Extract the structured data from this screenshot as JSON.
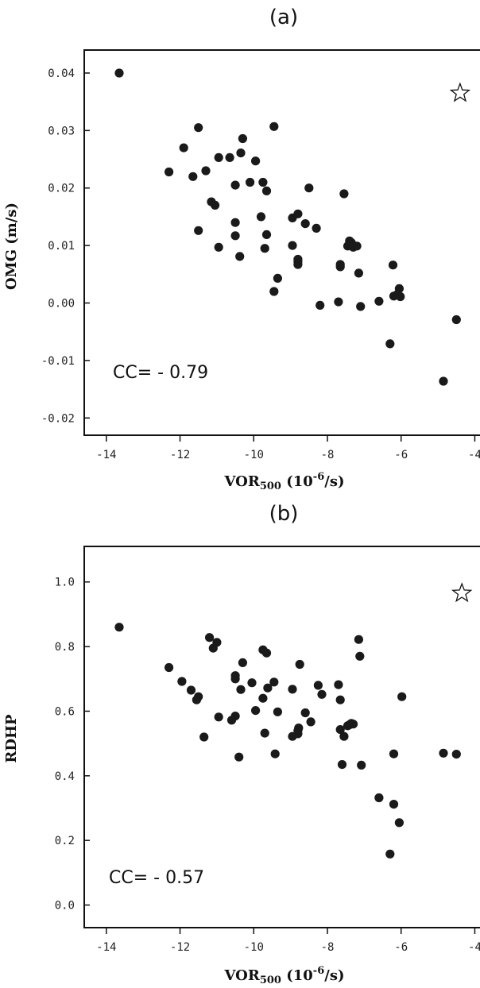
{
  "chart_data": [
    {
      "type": "scatter",
      "panel_label": "(a)",
      "xlabel_main": "VOR",
      "xlabel_sub": "500",
      "xlabel_unit_pre": " (10",
      "xlabel_unit_exp": "-6",
      "xlabel_unit_post": "/s)",
      "ylabel": "OMG (m/s)",
      "annotation": "CC= - 0.79",
      "xlim": [
        -14.6,
        -3.6
      ],
      "ylim": [
        -0.023,
        0.044
      ],
      "x_ticks": [
        -14,
        -12,
        -10,
        -8,
        -6,
        -4
      ],
      "x_tick_labels": [
        "-14",
        "-12",
        "-10",
        "-8",
        "-6",
        "-4"
      ],
      "y_ticks": [
        0.04,
        0.03,
        0.02,
        0.01,
        0.0,
        -0.01,
        -0.02
      ],
      "y_tick_labels": [
        "0.04",
        "0.03",
        "0.02",
        "0.01",
        "0.00",
        "-0.01",
        "-0.02"
      ],
      "star_marker": {
        "x": -4.4,
        "y": 0.0365
      },
      "points": [
        [
          -13.65,
          0.04
        ],
        [
          -12.3,
          0.0228
        ],
        [
          -11.9,
          0.027
        ],
        [
          -11.65,
          0.022
        ],
        [
          -11.5,
          0.0305
        ],
        [
          -11.5,
          0.0126
        ],
        [
          -11.3,
          0.023
        ],
        [
          -11.15,
          0.0176
        ],
        [
          -11.05,
          0.017
        ],
        [
          -10.95,
          0.0253
        ],
        [
          -10.95,
          0.0097
        ],
        [
          -10.65,
          0.0253
        ],
        [
          -10.5,
          0.0205
        ],
        [
          -10.5,
          0.014
        ],
        [
          -10.5,
          0.0117
        ],
        [
          -10.38,
          0.0081
        ],
        [
          -10.35,
          0.0261
        ],
        [
          -10.3,
          0.0286
        ],
        [
          -10.1,
          0.021
        ],
        [
          -9.95,
          0.0247
        ],
        [
          -9.8,
          0.015
        ],
        [
          -9.75,
          0.021
        ],
        [
          -9.7,
          0.0095
        ],
        [
          -9.65,
          0.0195
        ],
        [
          -9.65,
          0.0119
        ],
        [
          -9.45,
          0.0307
        ],
        [
          -9.45,
          0.002
        ],
        [
          -9.35,
          0.0043
        ],
        [
          -8.95,
          0.0148
        ],
        [
          -8.95,
          0.01
        ],
        [
          -8.8,
          0.0155
        ],
        [
          -8.8,
          0.0076
        ],
        [
          -8.8,
          0.0072
        ],
        [
          -8.8,
          0.0067
        ],
        [
          -8.6,
          0.0138
        ],
        [
          -8.5,
          0.02
        ],
        [
          -8.3,
          0.013
        ],
        [
          -8.2,
          -0.0004
        ],
        [
          -7.7,
          0.0002
        ],
        [
          -7.65,
          0.0067
        ],
        [
          -7.65,
          0.0063
        ],
        [
          -7.55,
          0.019
        ],
        [
          -7.45,
          0.0099
        ],
        [
          -7.4,
          0.0108
        ],
        [
          -7.35,
          0.0105
        ],
        [
          -7.3,
          0.0097
        ],
        [
          -7.2,
          0.0099
        ],
        [
          -7.15,
          0.0052
        ],
        [
          -7.1,
          -0.0006
        ],
        [
          -6.6,
          0.0003
        ],
        [
          -6.3,
          -0.0071
        ],
        [
          -6.22,
          0.0066
        ],
        [
          -6.2,
          0.0012
        ],
        [
          -6.1,
          0.0015
        ],
        [
          -6.05,
          0.0025
        ],
        [
          -6.02,
          0.0011
        ],
        [
          -4.85,
          -0.0136
        ],
        [
          -4.5,
          -0.0029
        ]
      ]
    },
    {
      "type": "scatter",
      "panel_label": "(b)",
      "xlabel_main": "VOR",
      "xlabel_sub": "500",
      "xlabel_unit_pre": " (10",
      "xlabel_unit_exp": "-6",
      "xlabel_unit_post": "/s)",
      "ylabel": "RDHP",
      "annotation": "CC= - 0.57",
      "xlim": [
        -14.6,
        -3.6
      ],
      "ylim": [
        -0.07,
        1.11
      ],
      "x_ticks": [
        -14,
        -12,
        -10,
        -8,
        -6,
        -4
      ],
      "x_tick_labels": [
        "-14",
        "-12",
        "-10",
        "-8",
        "-6",
        "-4"
      ],
      "y_ticks": [
        1.0,
        0.8,
        0.6,
        0.4,
        0.2,
        0.0
      ],
      "y_tick_labels": [
        "1.0",
        "0.8",
        "0.6",
        "0.4",
        "0.2",
        "0.0"
      ],
      "star_marker": {
        "x": -4.35,
        "y": 0.965
      },
      "points": [
        [
          -13.65,
          0.86
        ],
        [
          -12.3,
          0.735
        ],
        [
          -11.95,
          0.692
        ],
        [
          -11.7,
          0.665
        ],
        [
          -11.55,
          0.635
        ],
        [
          -11.5,
          0.645
        ],
        [
          -11.35,
          0.52
        ],
        [
          -11.2,
          0.828
        ],
        [
          -11.1,
          0.795
        ],
        [
          -11.0,
          0.813
        ],
        [
          -10.95,
          0.582
        ],
        [
          -10.6,
          0.572
        ],
        [
          -10.5,
          0.585
        ],
        [
          -10.5,
          0.71
        ],
        [
          -10.5,
          0.7
        ],
        [
          -10.4,
          0.458
        ],
        [
          -10.35,
          0.667
        ],
        [
          -10.3,
          0.75
        ],
        [
          -10.05,
          0.688
        ],
        [
          -9.95,
          0.602
        ],
        [
          -9.75,
          0.79
        ],
        [
          -9.75,
          0.64
        ],
        [
          -9.7,
          0.532
        ],
        [
          -9.65,
          0.78
        ],
        [
          -9.62,
          0.672
        ],
        [
          -9.45,
          0.69
        ],
        [
          -9.42,
          0.468
        ],
        [
          -9.35,
          0.598
        ],
        [
          -8.95,
          0.668
        ],
        [
          -8.95,
          0.522
        ],
        [
          -8.8,
          0.54
        ],
        [
          -8.8,
          0.53
        ],
        [
          -8.78,
          0.548
        ],
        [
          -8.75,
          0.745
        ],
        [
          -8.6,
          0.595
        ],
        [
          -8.45,
          0.567
        ],
        [
          -8.25,
          0.68
        ],
        [
          -8.15,
          0.652
        ],
        [
          -7.7,
          0.682
        ],
        [
          -7.65,
          0.635
        ],
        [
          -7.65,
          0.543
        ],
        [
          -7.6,
          0.435
        ],
        [
          -7.55,
          0.522
        ],
        [
          -7.45,
          0.555
        ],
        [
          -7.4,
          0.558
        ],
        [
          -7.35,
          0.562
        ],
        [
          -7.3,
          0.56
        ],
        [
          -7.15,
          0.822
        ],
        [
          -7.12,
          0.77
        ],
        [
          -7.08,
          0.433
        ],
        [
          -6.6,
          0.332
        ],
        [
          -6.3,
          0.158
        ],
        [
          -6.2,
          0.468
        ],
        [
          -6.2,
          0.312
        ],
        [
          -6.05,
          0.255
        ],
        [
          -5.98,
          0.645
        ],
        [
          -4.85,
          0.47
        ],
        [
          -4.5,
          0.467
        ]
      ]
    }
  ]
}
